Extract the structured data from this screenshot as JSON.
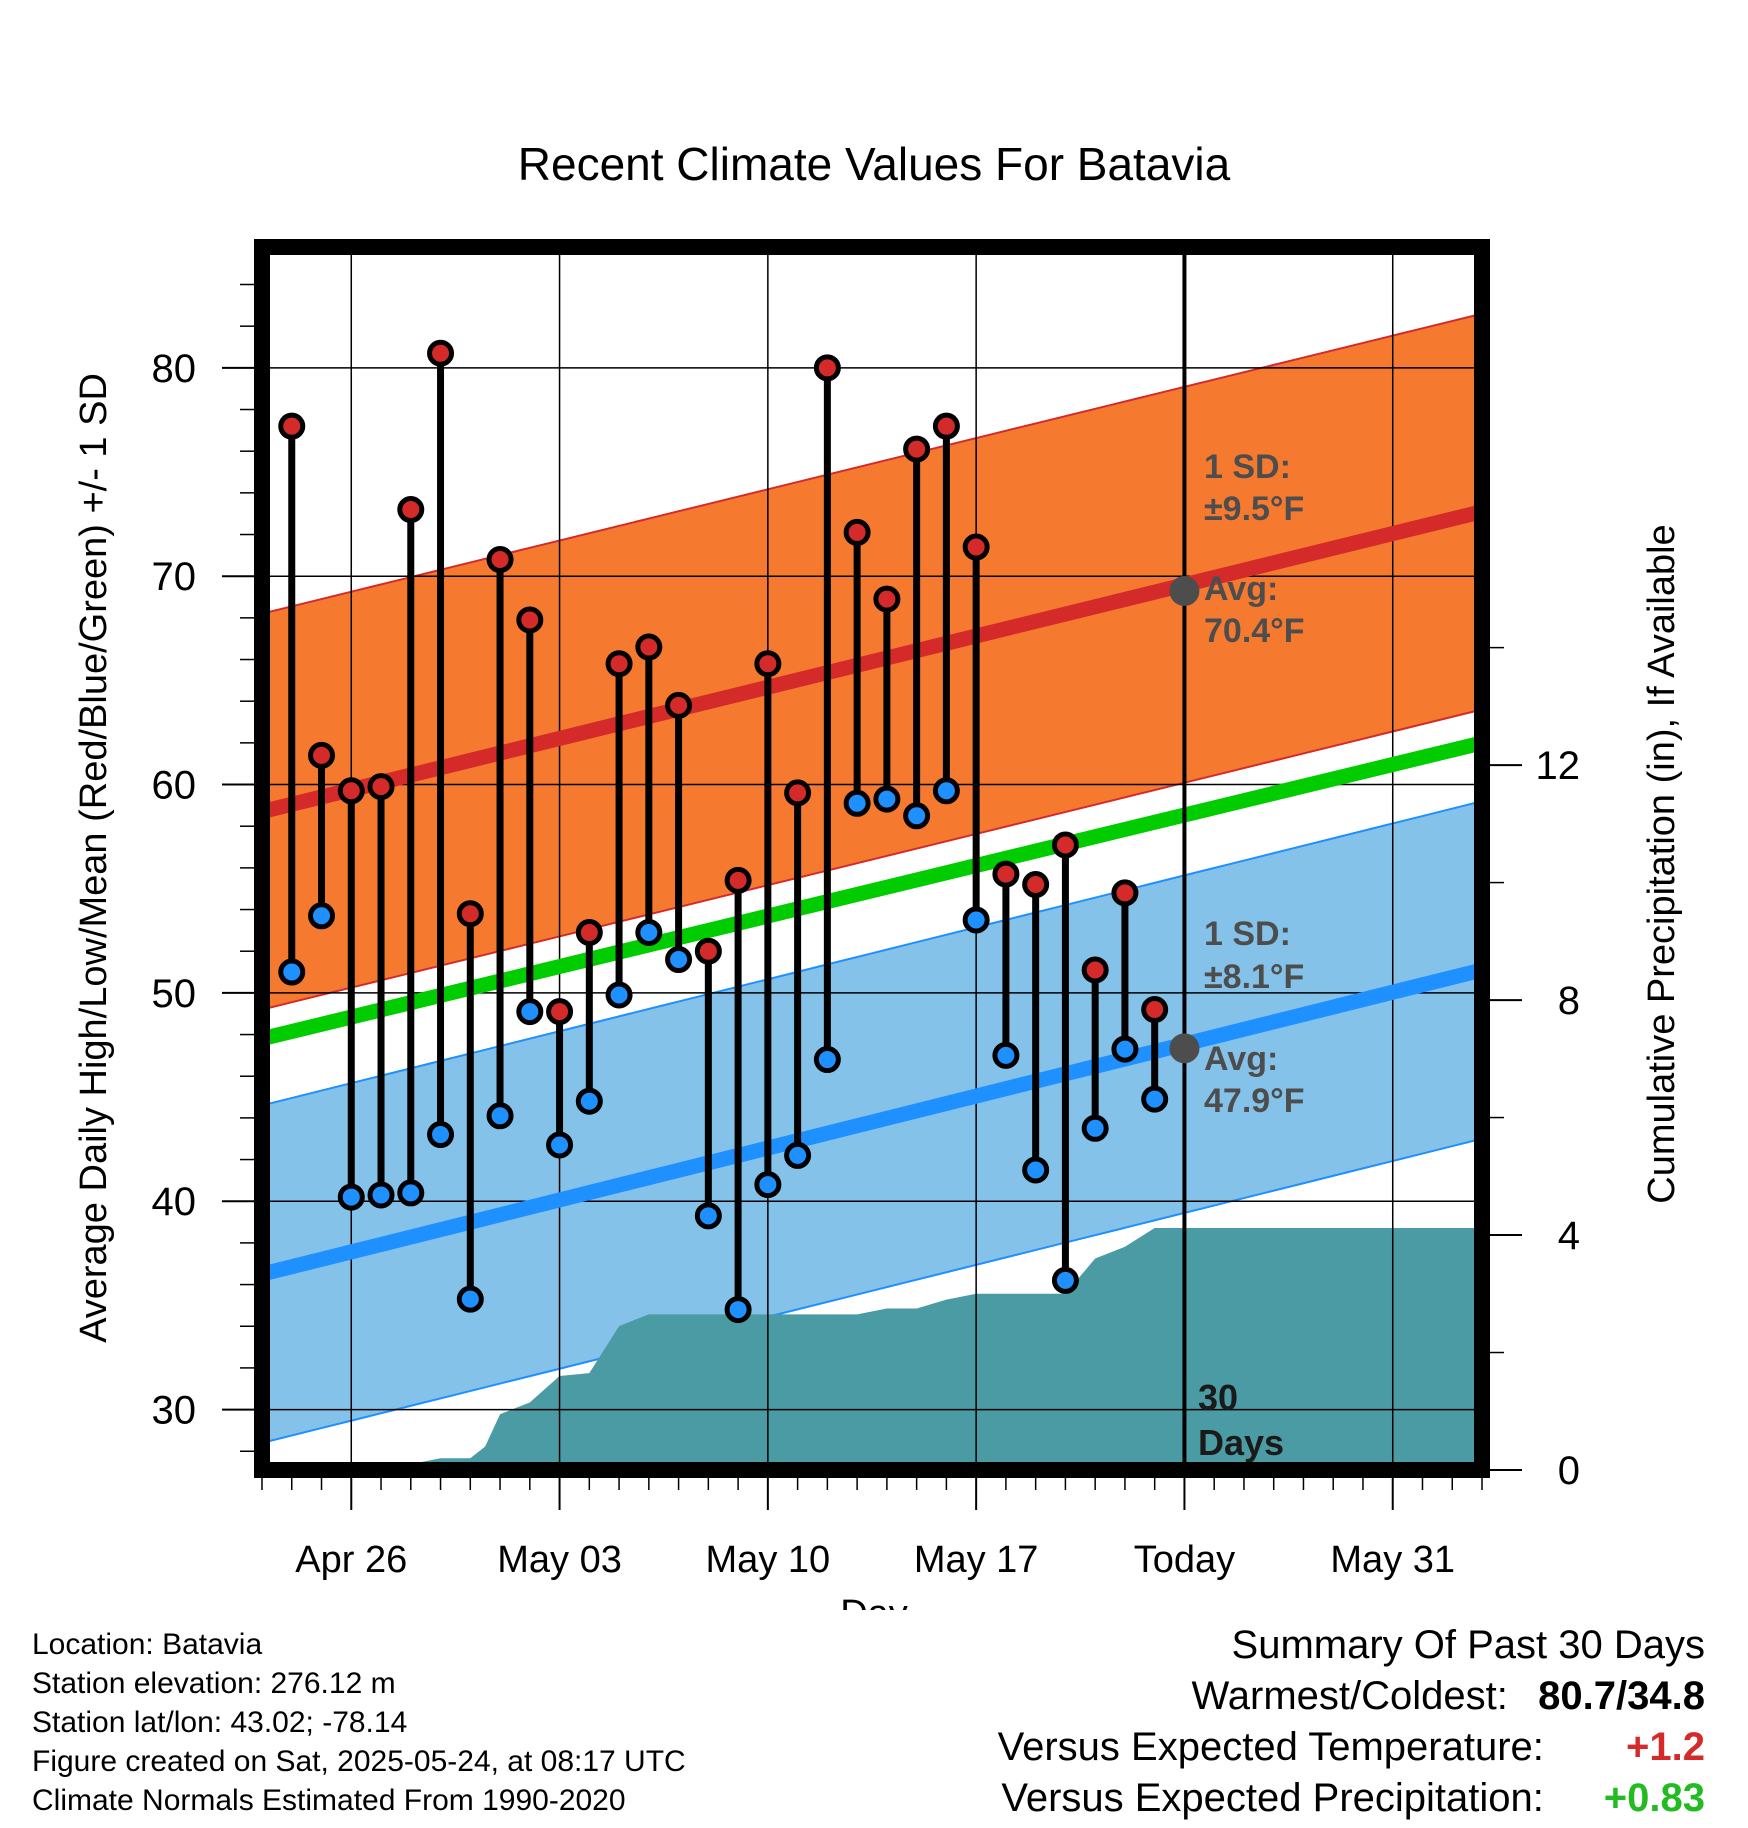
{
  "chart_data": {
    "type": "line",
    "title": "Recent Climate Values For Batavia",
    "xlabel": "Day",
    "ylabel_left": "Average Daily High/Low/Mean (Red/Blue/Green) +/- 1 SD",
    "ylabel_right": "Cumulative Precipitation (in), If Available",
    "x_tick_labels": [
      {
        "day": 3,
        "label": "Apr 26"
      },
      {
        "day": 10,
        "label": "May 03"
      },
      {
        "day": 17,
        "label": "May 10"
      },
      {
        "day": 24,
        "label": "May 17"
      },
      {
        "day": 31,
        "label": "Today"
      },
      {
        "day": 38,
        "label": "May 31"
      }
    ],
    "x_range": [
      0,
      41
    ],
    "y_left_range": [
      27.1,
      85.8
    ],
    "y_left_ticks": [
      30,
      40,
      50,
      60,
      70,
      80
    ],
    "y_right_range": [
      0,
      20.82
    ],
    "y_right_ticks": [
      0,
      4,
      8,
      12
    ],
    "grid": true,
    "today_day": 31,
    "daily_temps": [
      {
        "day": 1,
        "high": 77.2,
        "low": 51.0
      },
      {
        "day": 2,
        "high": 61.4,
        "low": 53.7
      },
      {
        "day": 3,
        "high": 59.7,
        "low": 40.2
      },
      {
        "day": 4,
        "high": 59.9,
        "low": 40.3
      },
      {
        "day": 5,
        "high": 73.2,
        "low": 40.4
      },
      {
        "day": 6,
        "high": 80.7,
        "low": 43.2
      },
      {
        "day": 7,
        "high": 53.8,
        "low": 35.3
      },
      {
        "day": 8,
        "high": 70.8,
        "low": 44.1
      },
      {
        "day": 9,
        "high": 67.9,
        "low": 49.1
      },
      {
        "day": 10,
        "high": 49.1,
        "low": 42.7
      },
      {
        "day": 11,
        "high": 52.9,
        "low": 44.8
      },
      {
        "day": 12,
        "high": 65.8,
        "low": 49.9
      },
      {
        "day": 13,
        "high": 66.6,
        "low": 52.9
      },
      {
        "day": 14,
        "high": 63.8,
        "low": 51.6
      },
      {
        "day": 15,
        "high": 52.0,
        "low": 39.3
      },
      {
        "day": 16,
        "high": 55.4,
        "low": 34.8
      },
      {
        "day": 17,
        "high": 65.8,
        "low": 40.8
      },
      {
        "day": 18,
        "high": 59.6,
        "low": 42.2
      },
      {
        "day": 19,
        "high": 80.0,
        "low": 46.8
      },
      {
        "day": 20,
        "high": 72.1,
        "low": 59.1
      },
      {
        "day": 21,
        "high": 68.9,
        "low": 59.3
      },
      {
        "day": 22,
        "high": 76.1,
        "low": 58.5
      },
      {
        "day": 23,
        "high": 77.2,
        "low": 59.7
      },
      {
        "day": 24,
        "high": 71.4,
        "low": 53.5
      },
      {
        "day": 25,
        "high": 55.7,
        "low": 47.0
      },
      {
        "day": 26,
        "high": 55.2,
        "low": 41.5
      },
      {
        "day": 27,
        "high": 57.1,
        "low": 36.2
      },
      {
        "day": 28,
        "high": 51.1,
        "low": 43.5
      },
      {
        "day": 29,
        "high": 54.8,
        "low": 47.3
      },
      {
        "day": 30,
        "high": 49.2,
        "low": 44.9
      }
    ],
    "normal_high": {
      "x": [
        0,
        41
      ],
      "avg": [
        58.7,
        73.1
      ],
      "sd": 9.5
    },
    "normal_low": {
      "x": [
        0,
        41
      ],
      "avg": [
        36.5,
        51.1
      ],
      "sd": 8.1
    },
    "normal_mean": {
      "x": [
        0,
        41
      ],
      "avg": [
        47.8,
        62.0
      ]
    },
    "cumulative_precip": {
      "x": [
        0,
        2,
        3,
        5,
        6,
        7,
        7.5,
        8,
        9,
        10,
        11,
        12,
        13,
        17,
        19,
        20,
        21,
        22,
        23,
        24,
        25,
        26,
        27,
        28,
        29,
        30,
        31,
        41
      ],
      "y": [
        0,
        0,
        0.1,
        0.1,
        0.2,
        0.2,
        0.4,
        0.95,
        1.15,
        1.6,
        1.65,
        2.45,
        2.65,
        2.65,
        2.65,
        2.65,
        2.75,
        2.75,
        2.9,
        3.0,
        3.0,
        3.0,
        3.0,
        3.6,
        3.8,
        4.12,
        4.12,
        4.12
      ]
    },
    "annotations": {
      "high_sd": "1 SD:",
      "high_sd_val": "±9.5°F",
      "high_avg": "Avg:",
      "high_avg_val": "70.4°F",
      "low_sd": "1 SD:",
      "low_sd_val": "±8.1°F",
      "low_avg": "Avg:",
      "low_avg_val": "47.9°F",
      "days_num": "30",
      "days_word": "Days"
    },
    "colors": {
      "high": "#d42a2a",
      "low": "#1e90ff",
      "mean": "#00cc00",
      "high_band": "#f57a30",
      "low_band": "#85c2ea",
      "precip": "#4a9ba3",
      "annotation": "#4d4d4d"
    }
  },
  "footer": {
    "location": "Location: Batavia",
    "elevation": "Station elevation: 276.12 m",
    "latlon": "Station lat/lon: 43.02; -78.14",
    "created": "Figure created on Sat, 2025-05-24, at 08:17 UTC",
    "normals": "Climate Normals Estimated From 1990-2020"
  },
  "summary": {
    "title": "Summary Of Past 30 Days",
    "warmest_label": "Warmest/Coldest:",
    "warmest_value": "80.7/34.8",
    "temp_label": "Versus Expected Temperature:",
    "temp_value": "+1.2",
    "temp_color": "#d42a2a",
    "precip_label": "Versus Expected Precipitation:",
    "precip_value": "+0.83",
    "precip_color": "#22bb22"
  }
}
